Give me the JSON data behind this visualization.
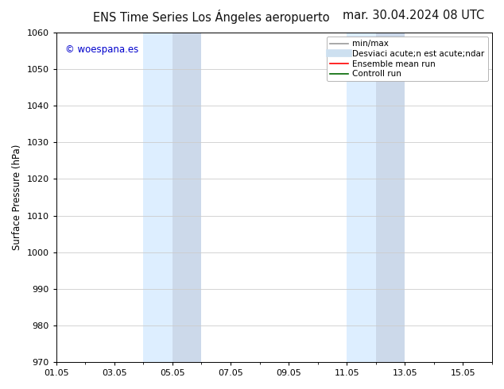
{
  "title_left": "ENS Time Series Los Ángeles aeropuerto",
  "title_right": "mar. 30.04.2024 08 UTC",
  "ylabel": "Surface Pressure (hPa)",
  "watermark": "© woespana.es",
  "watermark_color": "#0000cc",
  "ylim": [
    970,
    1060
  ],
  "yticks": [
    970,
    980,
    990,
    1000,
    1010,
    1020,
    1030,
    1040,
    1050,
    1060
  ],
  "xtick_labels": [
    "01.05",
    "03.05",
    "05.05",
    "07.05",
    "09.05",
    "11.05",
    "13.05",
    "15.05"
  ],
  "xtick_positions": [
    0,
    2,
    4,
    6,
    8,
    10,
    12,
    14
  ],
  "shaded_regions": [
    {
      "x_start": 3,
      "x_end": 4,
      "color": "#ddeeff"
    },
    {
      "x_start": 4,
      "x_end": 5,
      "color": "#ccd9ec"
    },
    {
      "x_start": 10,
      "x_end": 11,
      "color": "#ddeeff"
    },
    {
      "x_start": 11,
      "x_end": 12,
      "color": "#ccd9ec"
    }
  ],
  "legend_label_minmax": "min/max",
  "legend_label_std": "Desviaci acute;n est acute;ndar",
  "legend_label_ensemble": "Ensemble mean run",
  "legend_label_control": "Controll run",
  "legend_color_minmax": "#999999",
  "legend_color_std": "#cde0f0",
  "legend_color_ensemble": "#ff0000",
  "legend_color_control": "#006600",
  "background_color": "#ffffff",
  "plot_bg_color": "#ffffff",
  "grid_color": "#cccccc",
  "title_fontsize": 10.5,
  "tick_fontsize": 8,
  "ylabel_fontsize": 8.5,
  "legend_fontsize": 7.5,
  "watermark_fontsize": 8.5
}
